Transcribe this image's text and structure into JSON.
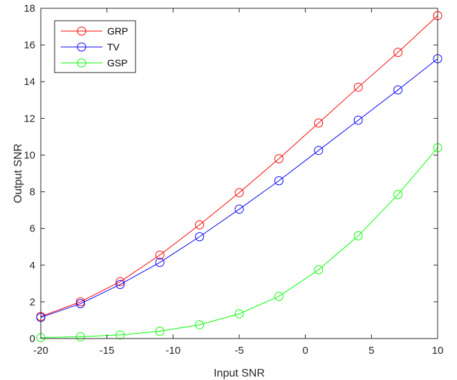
{
  "chart_data": {
    "type": "line",
    "title": "",
    "xlabel": "Input SNR",
    "ylabel": "Output SNR",
    "x": [
      -20,
      -17,
      -14,
      -11,
      -8,
      -5,
      -2,
      1,
      4,
      7,
      10
    ],
    "xlim": [
      -20,
      10
    ],
    "ylim": [
      0,
      18
    ],
    "xticks": [
      -20,
      -15,
      -10,
      -5,
      0,
      5,
      10
    ],
    "yticks": [
      0,
      2,
      4,
      6,
      8,
      10,
      12,
      14,
      16,
      18
    ],
    "grid": false,
    "legend_position": "top-left",
    "series": [
      {
        "name": "GRP",
        "color": "#ff0000",
        "marker": "circle",
        "values": [
          1.2,
          2.0,
          3.1,
          4.55,
          6.2,
          7.95,
          9.8,
          11.75,
          13.7,
          15.6,
          17.6
        ]
      },
      {
        "name": "TV",
        "color": "#0000ff",
        "marker": "circle",
        "values": [
          1.15,
          1.9,
          2.95,
          4.15,
          5.55,
          7.05,
          8.6,
          10.25,
          11.9,
          13.55,
          15.25
        ]
      },
      {
        "name": "GSP",
        "color": "#00ff00",
        "marker": "circle",
        "values": [
          0.05,
          0.1,
          0.2,
          0.4,
          0.75,
          1.35,
          2.3,
          3.75,
          5.6,
          7.85,
          10.4
        ]
      }
    ]
  }
}
